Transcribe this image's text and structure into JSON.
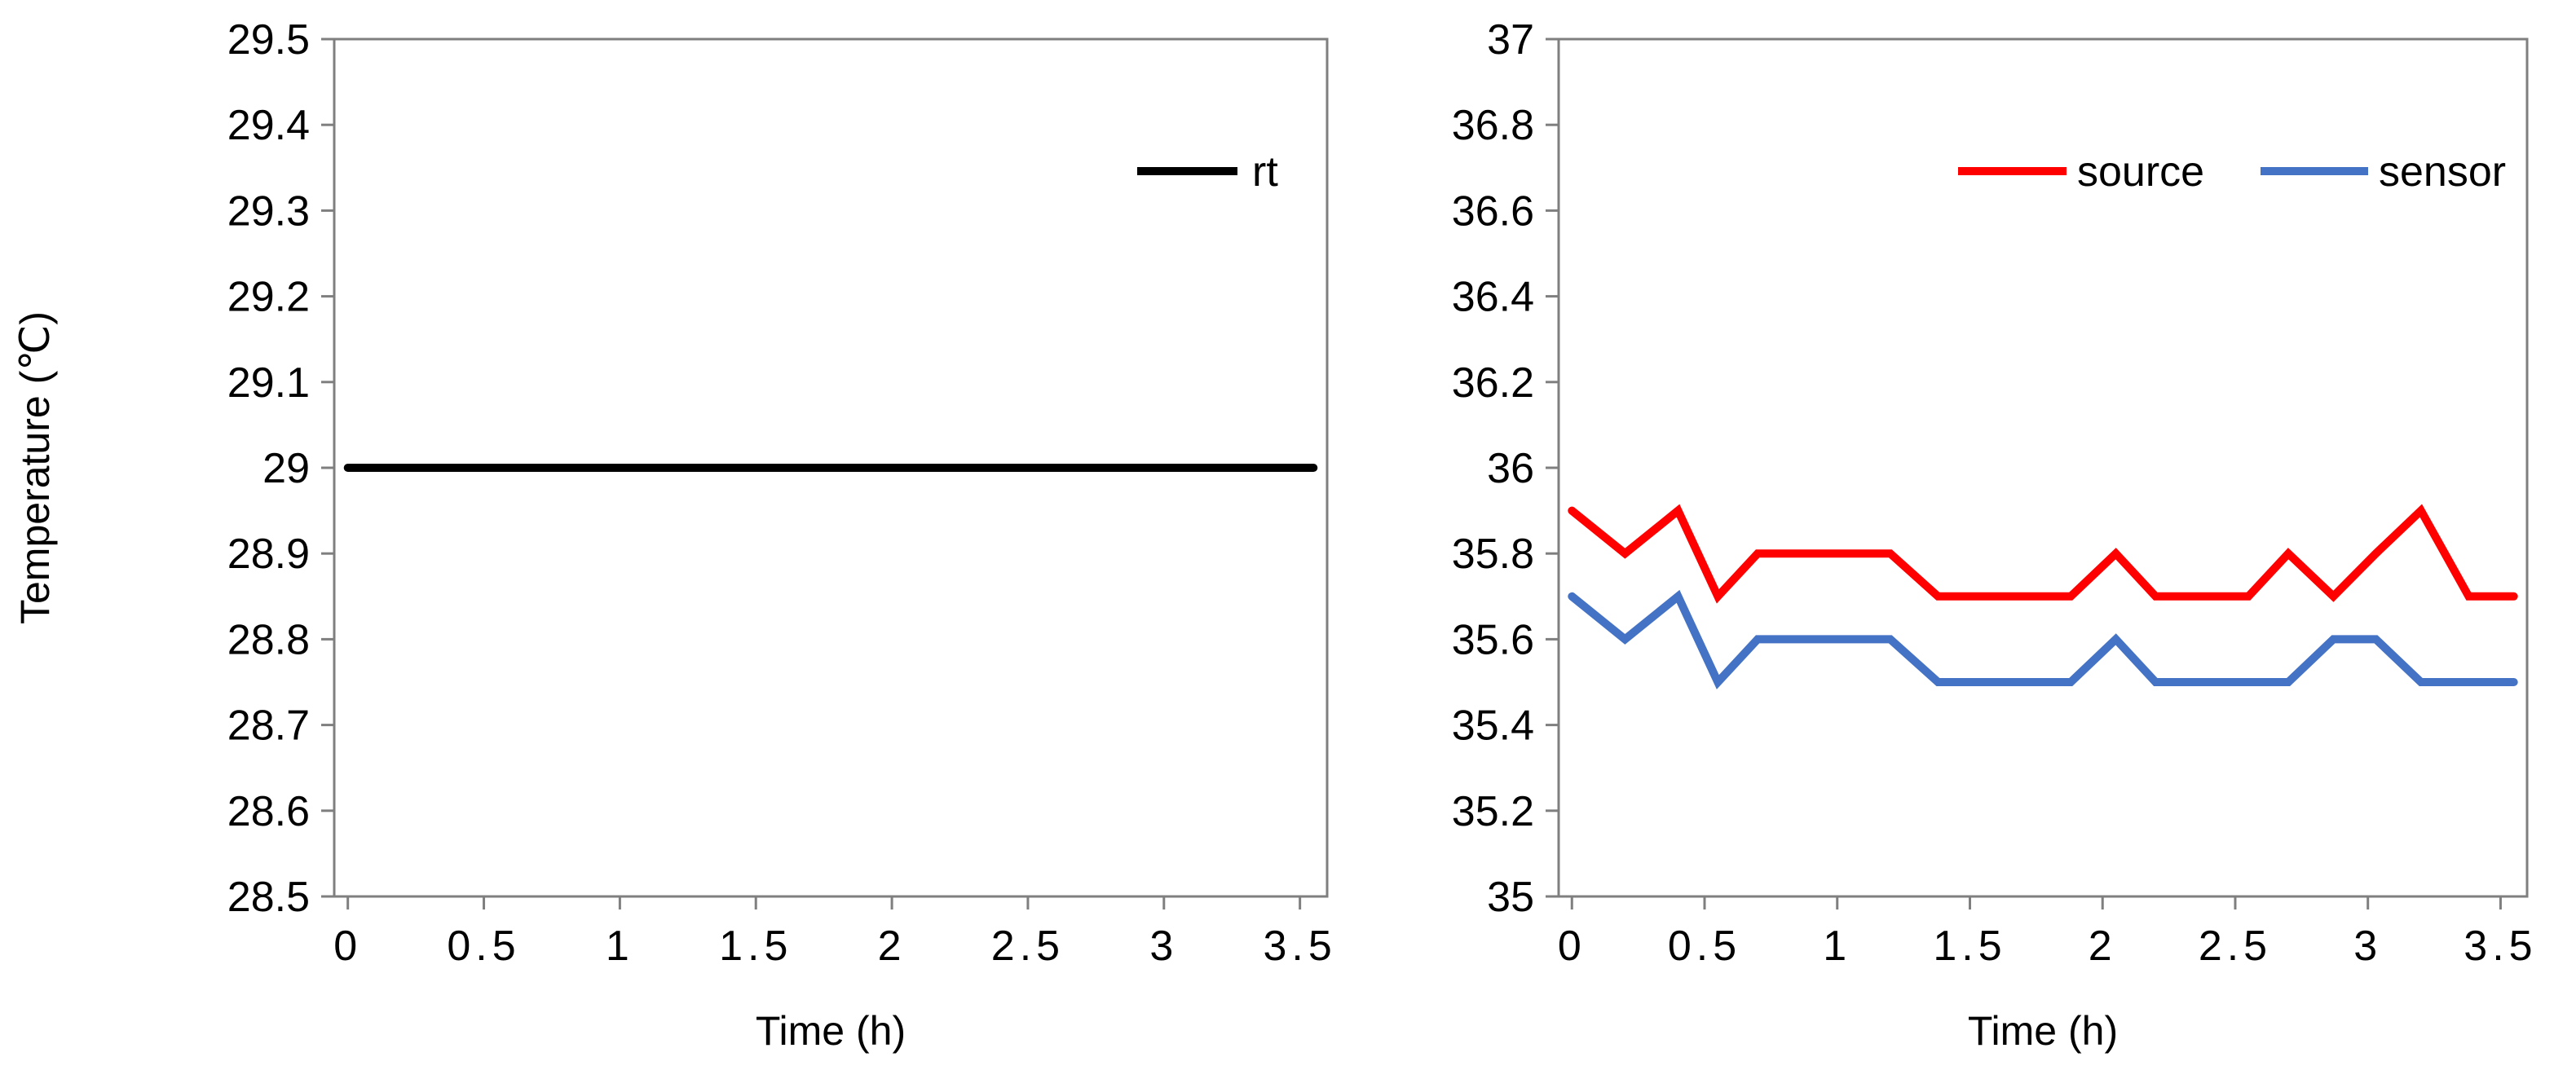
{
  "chart_data": [
    {
      "type": "line",
      "title": "",
      "xlabel": "Time (h)",
      "ylabel": "Temperature (℃)",
      "xlim": [
        -0.05,
        3.6
      ],
      "ylim": [
        28.5,
        29.5
      ],
      "x_ticks": [
        0,
        0.5,
        1,
        1.5,
        2,
        2.5,
        3,
        3.5
      ],
      "x_tick_labels": [
        "0",
        "0.5",
        "1",
        "1.5",
        "2",
        "2.5",
        "3",
        "3.5"
      ],
      "y_ticks": [
        28.5,
        28.6,
        28.7,
        28.8,
        28.9,
        29,
        29.1,
        29.2,
        29.3,
        29.4,
        29.5
      ],
      "y_tick_labels": [
        "28.5",
        "28.6",
        "28.7",
        "28.8",
        "28.9",
        "29",
        "29.1",
        "29.2",
        "29.3",
        "29.4",
        "29.5"
      ],
      "legend_position": "top-right",
      "grid": false,
      "series": [
        {
          "name": "rt",
          "color": "#000000",
          "x": [
            0,
            3.55
          ],
          "y": [
            29,
            29
          ]
        }
      ]
    },
    {
      "type": "line",
      "title": "",
      "xlabel": "Time (h)",
      "ylabel": "",
      "xlim": [
        -0.05,
        3.6
      ],
      "ylim": [
        35,
        37
      ],
      "x_ticks": [
        0,
        0.5,
        1,
        1.5,
        2,
        2.5,
        3,
        3.5
      ],
      "x_tick_labels": [
        "0",
        "0.5",
        "1",
        "1.5",
        "2",
        "2.5",
        "3",
        "3.5"
      ],
      "y_ticks": [
        35,
        35.2,
        35.4,
        35.6,
        35.8,
        36,
        36.2,
        36.4,
        36.6,
        36.8,
        37
      ],
      "y_tick_labels": [
        "35",
        "35.2",
        "35.4",
        "35.6",
        "35.8",
        "36",
        "36.2",
        "36.4",
        "36.6",
        "36.8",
        "37"
      ],
      "legend_position": "top-right",
      "grid": false,
      "series": [
        {
          "name": "source",
          "color": "#ff0000",
          "x": [
            0,
            0.2,
            0.4,
            0.55,
            0.7,
            0.9,
            1.05,
            1.2,
            1.38,
            1.55,
            1.72,
            1.88,
            2.05,
            2.2,
            2.38,
            2.55,
            2.7,
            2.87,
            3.03,
            3.2,
            3.38,
            3.55
          ],
          "y": [
            35.9,
            35.8,
            35.9,
            35.7,
            35.8,
            35.8,
            35.8,
            35.8,
            35.7,
            35.7,
            35.7,
            35.7,
            35.8,
            35.7,
            35.7,
            35.7,
            35.8,
            35.7,
            35.8,
            35.9,
            35.7,
            35.7
          ]
        },
        {
          "name": "sensor",
          "color": "#4472c4",
          "x": [
            0,
            0.2,
            0.4,
            0.55,
            0.7,
            0.9,
            1.05,
            1.2,
            1.38,
            1.55,
            1.72,
            1.88,
            2.05,
            2.2,
            2.38,
            2.55,
            2.7,
            2.87,
            3.03,
            3.2,
            3.38,
            3.55
          ],
          "y": [
            35.7,
            35.6,
            35.7,
            35.5,
            35.6,
            35.6,
            35.6,
            35.6,
            35.5,
            35.5,
            35.5,
            35.5,
            35.6,
            35.5,
            35.5,
            35.5,
            35.5,
            35.6,
            35.6,
            35.5,
            35.5,
            35.5
          ]
        }
      ]
    }
  ]
}
